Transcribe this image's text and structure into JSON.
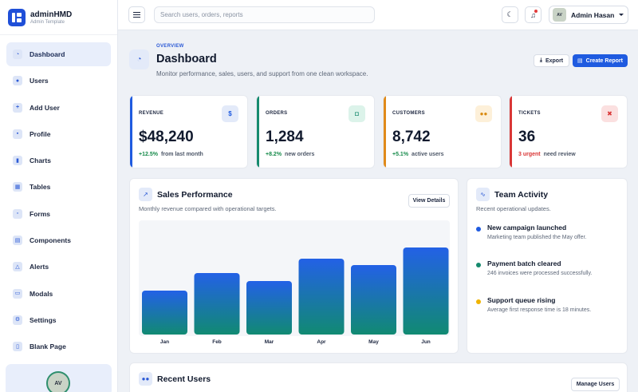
{
  "brand": {
    "name": "adminHMD",
    "subtitle": "Admin Template"
  },
  "sidebar": {
    "items": [
      {
        "label": "Dashboard",
        "icon": "dashboard-icon",
        "active": true
      },
      {
        "label": "Users",
        "icon": "users-icon"
      },
      {
        "label": "Add User",
        "icon": "add-user-icon"
      },
      {
        "label": "Profile",
        "icon": "profile-icon"
      },
      {
        "label": "Charts",
        "icon": "charts-icon"
      },
      {
        "label": "Tables",
        "icon": "tables-icon"
      },
      {
        "label": "Forms",
        "icon": "forms-icon"
      },
      {
        "label": "Components",
        "icon": "components-icon"
      },
      {
        "label": "Alerts",
        "icon": "alerts-icon"
      },
      {
        "label": "Modals",
        "icon": "modals-icon"
      },
      {
        "label": "Settings",
        "icon": "settings-icon"
      },
      {
        "label": "Blank Page",
        "icon": "blank-page-icon"
      }
    ],
    "user_initials": "AV"
  },
  "topbar": {
    "search_placeholder": "Search users, orders, reports",
    "user_initials": "AV",
    "user_name": "Admin Hasan"
  },
  "page": {
    "overline": "OVERVIEW",
    "title": "Dashboard",
    "subtitle": "Monitor performance, sales, users, and support from one clean workspace.",
    "export_label": "Export",
    "create_label": "Create Report"
  },
  "stats": [
    {
      "label": "REVENUE",
      "value": "$48,240",
      "delta": "+12.5%",
      "note": "from last month",
      "accent": "#1f5be0",
      "icon": "dollar-icon",
      "delta_color": "#168a4a"
    },
    {
      "label": "ORDERS",
      "value": "1,284",
      "delta": "+8.2%",
      "note": "new orders",
      "accent": "#168a6e",
      "icon": "bag-icon",
      "delta_color": "#168a4a"
    },
    {
      "label": "CUSTOMERS",
      "value": "8,742",
      "delta": "+5.1%",
      "note": "active users",
      "accent": "#e08a1a",
      "icon": "customers-icon",
      "delta_color": "#168a4a"
    },
    {
      "label": "TICKETS",
      "value": "36",
      "delta": "3 urgent",
      "note": "need review",
      "accent": "#d93636",
      "icon": "ticket-icon",
      "delta_color": "#d93636"
    }
  ],
  "sales": {
    "title": "Sales Performance",
    "subtitle": "Monthly revenue compared with operational targets.",
    "button": "View Details"
  },
  "chart_data": {
    "type": "bar",
    "categories": [
      "Jan",
      "Feb",
      "Mar",
      "Apr",
      "May",
      "Jun"
    ],
    "values": [
      55,
      77,
      67,
      95,
      87,
      109
    ],
    "ylim": [
      0,
      140
    ],
    "grid": false,
    "legend": "none"
  },
  "activity": {
    "title": "Team Activity",
    "subtitle": "Recent operational updates.",
    "items": [
      {
        "title": "New campaign launched",
        "desc": "Marketing team published the May offer.",
        "color": "#1f5be0"
      },
      {
        "title": "Payment batch cleared",
        "desc": "246 invoices were processed successfully.",
        "color": "#168a6e"
      },
      {
        "title": "Support queue rising",
        "desc": "Average first response time is 18 minutes.",
        "color": "#f0b400"
      }
    ]
  },
  "recent_users": {
    "title": "Recent Users",
    "button": "Manage Users"
  }
}
